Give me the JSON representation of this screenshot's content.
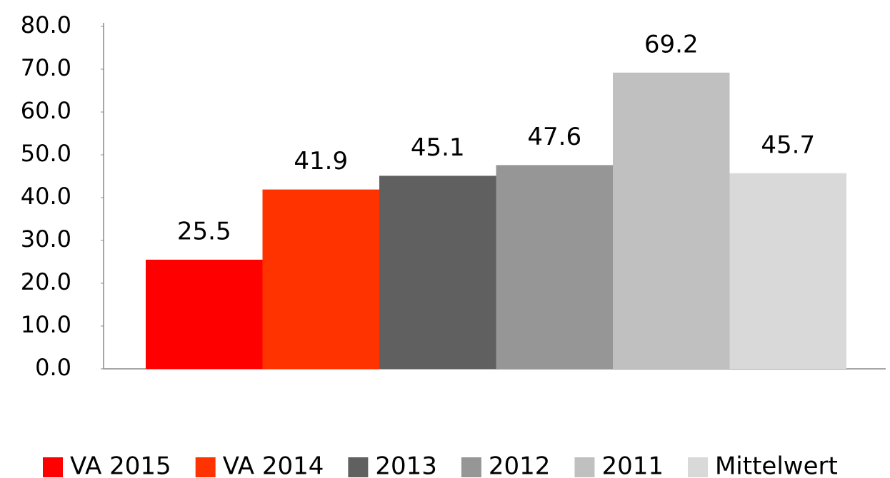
{
  "chart_data": {
    "type": "bar",
    "series": [
      {
        "name": "VA 2015",
        "color": "#ff0000",
        "values": [
          25.5
        ]
      },
      {
        "name": "VA 2014",
        "color": "#ff3300",
        "values": [
          41.9
        ]
      },
      {
        "name": "2013",
        "color": "#606060",
        "values": [
          45.1
        ]
      },
      {
        "name": "2012",
        "color": "#969696",
        "values": [
          47.6
        ]
      },
      {
        "name": "2011",
        "color": "#c0c0c0",
        "values": [
          69.2
        ]
      },
      {
        "name": "Mittelwert",
        "color": "#d9d9d9",
        "values": [
          45.7
        ]
      }
    ],
    "ylim": [
      0,
      80
    ],
    "yticks": [
      {
        "value": 0,
        "label": "0.0"
      },
      {
        "value": 10,
        "label": "10.0"
      },
      {
        "value": 20,
        "label": "20.0"
      },
      {
        "value": 30,
        "label": "30.0"
      },
      {
        "value": 40,
        "label": "40.0"
      },
      {
        "value": 50,
        "label": "50.0"
      },
      {
        "value": 60,
        "label": "60.0"
      },
      {
        "value": 70,
        "label": "70.0"
      },
      {
        "value": 80,
        "label": "80.0"
      }
    ],
    "grid": false,
    "legend": "bottom"
  }
}
